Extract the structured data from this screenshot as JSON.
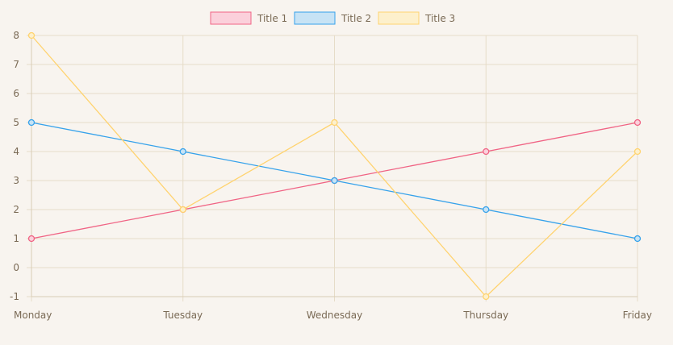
{
  "chart_data": {
    "type": "line",
    "categories": [
      "Monday",
      "Tuesday",
      "Wednesday",
      "Thursday",
      "Friday"
    ],
    "series": [
      {
        "name": "Title 1",
        "values": [
          1,
          2,
          3,
          4,
          5
        ],
        "color": "#f06384",
        "fill": "#fbd0db"
      },
      {
        "name": "Title 2",
        "values": [
          5,
          4,
          3,
          2,
          1
        ],
        "color": "#36a2eb",
        "fill": "#c7e3f5"
      },
      {
        "name": "Title 3",
        "values": [
          8,
          2,
          5,
          -1,
          4
        ],
        "color": "#ffd36f",
        "fill": "#fdf0cc"
      }
    ],
    "ylim": [
      -1,
      8
    ],
    "yticks": [
      "-1",
      "0",
      "1",
      "2",
      "3",
      "4",
      "5",
      "6",
      "7",
      "8"
    ],
    "grid": true,
    "legend": "top",
    "colors": {
      "background": "#f8f4ef",
      "grid": "#e6dcc8",
      "axis": "#d9ccb5",
      "tick_text": "#7a6a55"
    }
  }
}
